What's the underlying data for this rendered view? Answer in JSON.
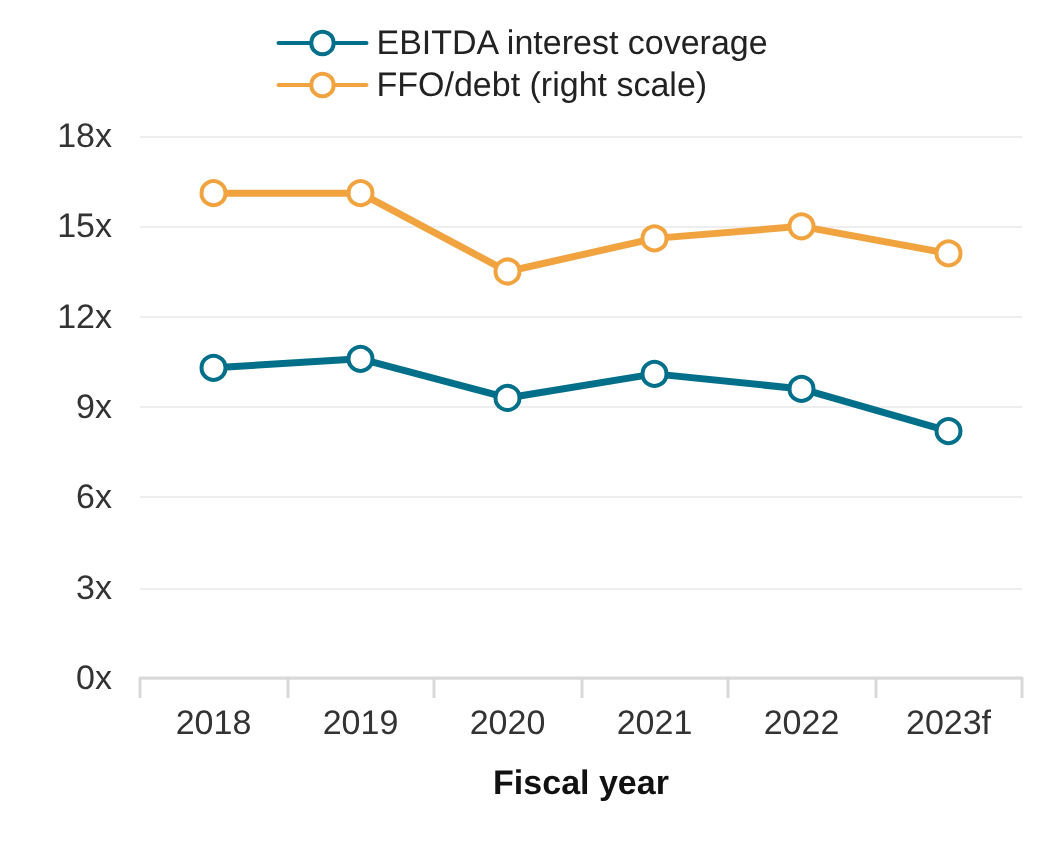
{
  "chart_data": {
    "type": "line",
    "xlabel": "Fiscal year",
    "categories": [
      "2018",
      "2019",
      "2020",
      "2021",
      "2022",
      "2023f"
    ],
    "series": [
      {
        "name": "EBITDA interest coverage",
        "color": "#006f8a",
        "values": [
          10.3,
          10.6,
          9.3,
          10.1,
          9.6,
          8.2
        ]
      },
      {
        "name": "FFO/debt (right scale)",
        "color": "#f1a340",
        "values": [
          16.1,
          16.1,
          13.5,
          14.6,
          15.0,
          14.1
        ]
      }
    ],
    "ylim": [
      0,
      18
    ],
    "yticks": [
      {
        "value": 0,
        "label": "0x"
      },
      {
        "value": 3,
        "label": "3x"
      },
      {
        "value": 6,
        "label": "6x"
      },
      {
        "value": 9,
        "label": "9x"
      },
      {
        "value": 12,
        "label": "12x"
      },
      {
        "value": 15,
        "label": "15x"
      },
      {
        "value": 18,
        "label": "18x"
      }
    ],
    "grid": "y",
    "legend": "top",
    "marker": "circle",
    "line_style": "solid"
  }
}
